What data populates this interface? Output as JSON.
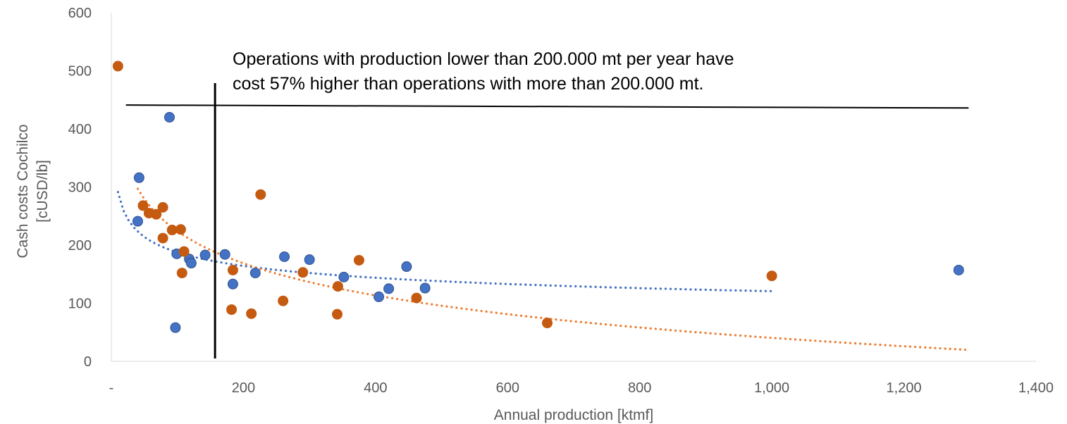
{
  "chart_data": {
    "type": "scatter",
    "title": "",
    "xlabel": "Annual production [ktmf]",
    "ylabel_lines": [
      "Cash costs Cochilco",
      "[cUSD/lb]"
    ],
    "xlim": [
      0,
      1400
    ],
    "ylim": [
      0,
      600
    ],
    "x_ticks": [
      0,
      200,
      400,
      600,
      800,
      1000,
      1200,
      1400
    ],
    "x_tick_labels": [
      "-",
      "200",
      "400",
      "600",
      "800",
      "1,000",
      "1,200",
      "1,400"
    ],
    "y_ticks": [
      0,
      100,
      200,
      300,
      400,
      500,
      600
    ],
    "y_tick_labels": [
      "0",
      "100",
      "200",
      "300",
      "400",
      "500",
      "600"
    ],
    "grid": false,
    "series": [
      {
        "color": "#4472C4",
        "points": [
          [
            42,
            316
          ],
          [
            40,
            241
          ],
          [
            88,
            420
          ],
          [
            99,
            185
          ],
          [
            97,
            58
          ],
          [
            118,
            176
          ],
          [
            121,
            169
          ],
          [
            142,
            183
          ],
          [
            172,
            184
          ],
          [
            184,
            133
          ],
          [
            218,
            152
          ],
          [
            262,
            180
          ],
          [
            300,
            175
          ],
          [
            352,
            145
          ],
          [
            405,
            111
          ],
          [
            420,
            125
          ],
          [
            447,
            163
          ],
          [
            475,
            126
          ],
          [
            1283,
            157
          ]
        ],
        "trendline": {
          "type": "power",
          "x_range": [
            10,
            1000
          ],
          "style": "dotted"
        }
      },
      {
        "color": "#C55A11",
        "points": [
          [
            10,
            508
          ],
          [
            48,
            268
          ],
          [
            57,
            255
          ],
          [
            68,
            253
          ],
          [
            78,
            265
          ],
          [
            78,
            212
          ],
          [
            92,
            226
          ],
          [
            105,
            227
          ],
          [
            107,
            152
          ],
          [
            110,
            189
          ],
          [
            182,
            89
          ],
          [
            184,
            157
          ],
          [
            212,
            82
          ],
          [
            226,
            287
          ],
          [
            260,
            104
          ],
          [
            290,
            153
          ],
          [
            343,
            129
          ],
          [
            342,
            81
          ],
          [
            375,
            174
          ],
          [
            462,
            109
          ],
          [
            660,
            66
          ],
          [
            1000,
            147
          ]
        ],
        "trendline": {
          "type": "log",
          "x_range": [
            40,
            1300
          ],
          "style": "dotted",
          "color": "#ED7D31"
        }
      }
    ],
    "threshold_x": 157,
    "reference_line": {
      "x_range": [
        22,
        1298
      ],
      "y_range": [
        441,
        436
      ]
    },
    "annotation": [
      "Operations with production lower than 200.000 mt per year have",
      "cost 57% higher than operations with more than 200.000 mt."
    ]
  }
}
